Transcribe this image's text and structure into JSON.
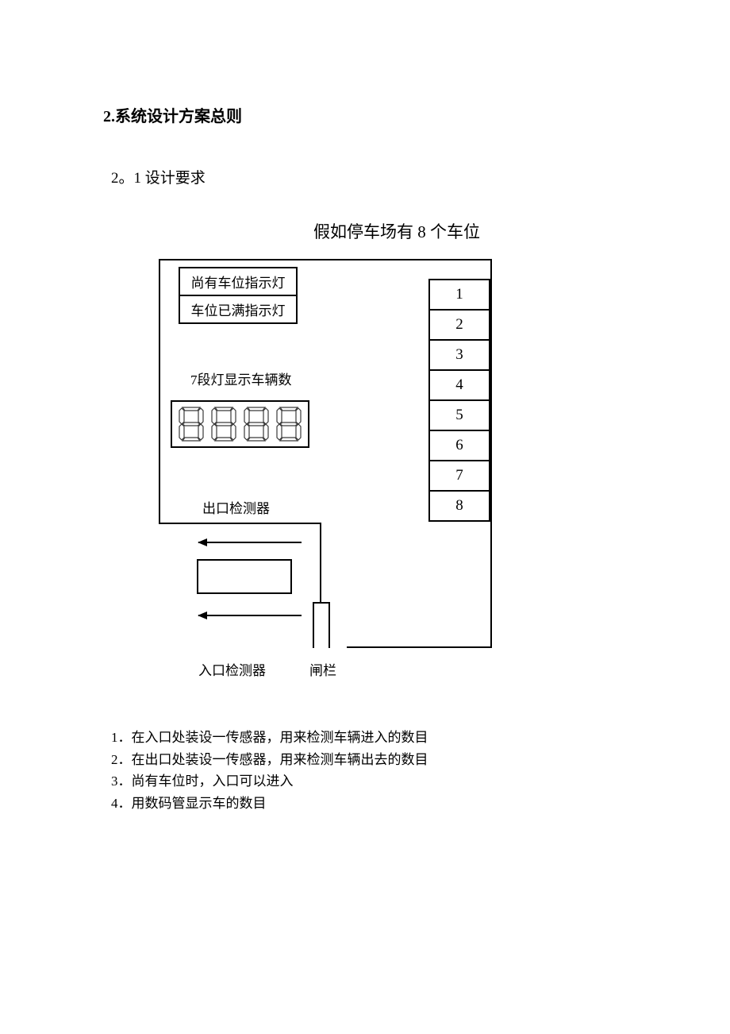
{
  "section_title": "2.系统设计方案总则",
  "subsection_title": "2。1 设计要求",
  "diagram_title": "假如停车场有 8 个车位",
  "diagram": {
    "indicator1": "尚有车位指示灯",
    "indicator2": "车位已满指示灯",
    "seg_label": "7段灯显示车辆数",
    "exit_label": "出口检测器",
    "entry_label": "入口检测器",
    "gate_label": "闸栏",
    "slots": [
      "1",
      "2",
      "3",
      "4",
      "5",
      "6",
      "7",
      "8"
    ],
    "segments": 4,
    "colors": {
      "stroke": "#000000",
      "background": "#ffffff",
      "seg_stroke": "#3a3a3a"
    },
    "outer_width": 420,
    "outer_height": 490,
    "border_width": 2.5
  },
  "requirements": [
    "1．在入口处装设一传感器，用来检测车辆进入的数目",
    "2．在出口处装设一传感器，用来检测车辆出去的数目",
    "3．尚有车位时，入口可以进入",
    "4．用数码管显示车的数目"
  ]
}
